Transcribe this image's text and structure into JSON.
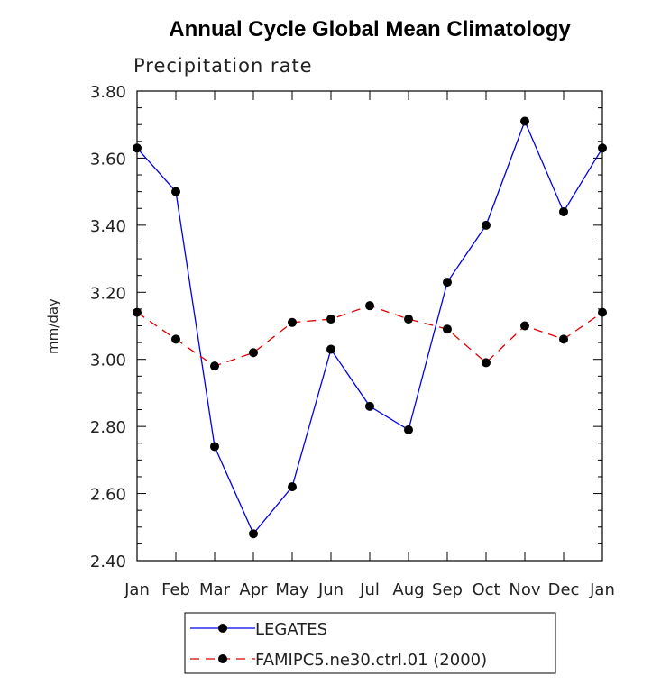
{
  "chart_data": {
    "type": "line",
    "title": "Annual Cycle Global Mean Climatology",
    "subtitle": "Precipitation rate",
    "ylabel": "mm/day",
    "xlabel": "",
    "categories": [
      "Jan",
      "Feb",
      "Mar",
      "Apr",
      "May",
      "Jun",
      "Jul",
      "Aug",
      "Sep",
      "Oct",
      "Nov",
      "Dec",
      "Jan"
    ],
    "ylim": [
      2.4,
      3.8
    ],
    "yticks": [
      "2.40",
      "2.60",
      "2.80",
      "3.00",
      "3.20",
      "3.40",
      "3.60",
      "3.80"
    ],
    "grid": false,
    "legend_position": "bottom",
    "series": [
      {
        "name": "LEGATES",
        "color": "#0000ee",
        "style": "solid",
        "values": [
          3.63,
          3.5,
          2.74,
          2.48,
          2.62,
          3.03,
          2.86,
          2.79,
          3.23,
          3.4,
          3.71,
          3.44,
          3.63
        ]
      },
      {
        "name": "FAMIPC5.ne30.ctrl.01 (2000)",
        "color": "#dd0000",
        "style": "dashed",
        "values": [
          3.14,
          3.06,
          2.98,
          3.02,
          3.11,
          3.12,
          3.16,
          3.12,
          3.09,
          2.99,
          3.1,
          3.06,
          3.14
        ]
      }
    ]
  }
}
